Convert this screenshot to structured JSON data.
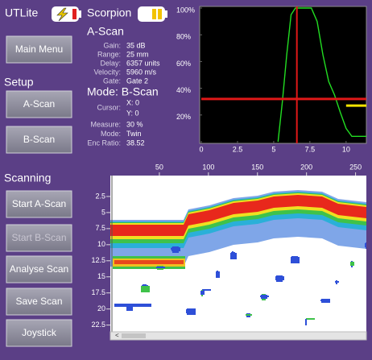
{
  "header": {
    "app": "UTLite",
    "device": "Scorpion"
  },
  "menu": {
    "main_menu": "Main Menu",
    "setup_title": "Setup",
    "setup_buttons": [
      "A-Scan",
      "B-Scan"
    ],
    "scanning_title": "Scanning",
    "scanning_buttons": [
      "Start A-Scan",
      "Start B-Scan",
      "Analyse Scan",
      "Save Scan",
      "Joystick"
    ]
  },
  "info": {
    "title": "A-Scan",
    "rows": [
      [
        "Gain:",
        "35 dB"
      ],
      [
        "Range:",
        "25 mm"
      ],
      [
        "Delay:",
        "6357 units"
      ],
      [
        "Velocity:",
        "5960 m/s"
      ],
      [
        "Gate:",
        "Gate 2"
      ]
    ],
    "mode_title": "Mode: B-Scan",
    "cursor_label": "Cursor:",
    "cursor_x": "X: 0",
    "cursor_y": "Y: 0",
    "rows2": [
      [
        "Measure:",
        "30 %"
      ],
      [
        "Mode:",
        "Twin"
      ],
      [
        "Enc Ratio:",
        "38.52"
      ]
    ]
  },
  "a_scan": {
    "xlim": [
      0,
      11.4
    ],
    "ylim": [
      0,
      100
    ],
    "xticks": [
      0,
      2.5,
      5,
      7.5,
      10
    ],
    "yticks": [
      {
        "value": 20,
        "label": "20%"
      },
      {
        "value": 40,
        "label": "40%"
      },
      {
        "value": 60,
        "label": "60%"
      },
      {
        "value": 80,
        "label": "80%"
      },
      {
        "value": 100,
        "label": "100%"
      }
    ],
    "cursor_x": 6.6,
    "gate_level": 32,
    "gate_color": "#e01818",
    "signal_color": "#22dd22",
    "second_gate": {
      "x": [
        10,
        11.4
      ],
      "level": 27,
      "color": "#f5e400"
    },
    "signal": {
      "x": [
        5.3,
        5.6,
        5.9,
        6.2,
        6.5,
        7.6,
        8.0,
        8.4,
        8.8,
        9.2,
        9.6,
        10,
        10.4,
        11.4
      ],
      "y": [
        0,
        30,
        65,
        95,
        100,
        100,
        90,
        65,
        45,
        35,
        22,
        10,
        4,
        4
      ]
    }
  },
  "b_scan": {
    "xlim": [
      0,
      261
    ],
    "ylim": [
      -0.75,
      24.3
    ],
    "xticks": [
      50,
      100,
      150,
      200,
      250
    ],
    "yticks": [
      2.5,
      5,
      7.5,
      10,
      12.5,
      15,
      17.5,
      20,
      22.5
    ]
  }
}
